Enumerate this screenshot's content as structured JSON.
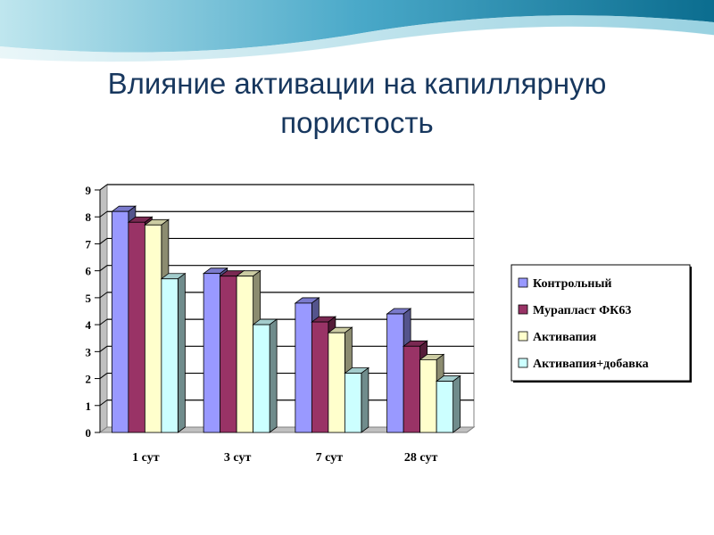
{
  "slide": {
    "title": "Влияние активации на капиллярную пористость"
  },
  "chart_data": {
    "type": "bar",
    "categories": [
      "1 сут",
      "3 сут",
      "7 сут",
      "28 сут"
    ],
    "series": [
      {
        "name": "Контрольный",
        "values": [
          8.2,
          5.9,
          4.8,
          4.4
        ],
        "color": "#9999ff"
      },
      {
        "name": "Мурапласт ФК63",
        "values": [
          7.8,
          5.8,
          4.1,
          3.2
        ],
        "color": "#993366"
      },
      {
        "name": "Активапия",
        "values": [
          7.7,
          5.8,
          3.7,
          2.7
        ],
        "color": "#ffffcc"
      },
      {
        "name": "Активапия+добавка",
        "values": [
          5.7,
          4.0,
          2.2,
          1.9
        ],
        "color": "#ccffff"
      }
    ],
    "ylim": [
      0,
      9
    ],
    "yticks": [
      "0",
      "1",
      "2",
      "3",
      "4",
      "5",
      "6",
      "7",
      "8",
      "9"
    ],
    "grid": true,
    "legend_position": "right"
  }
}
